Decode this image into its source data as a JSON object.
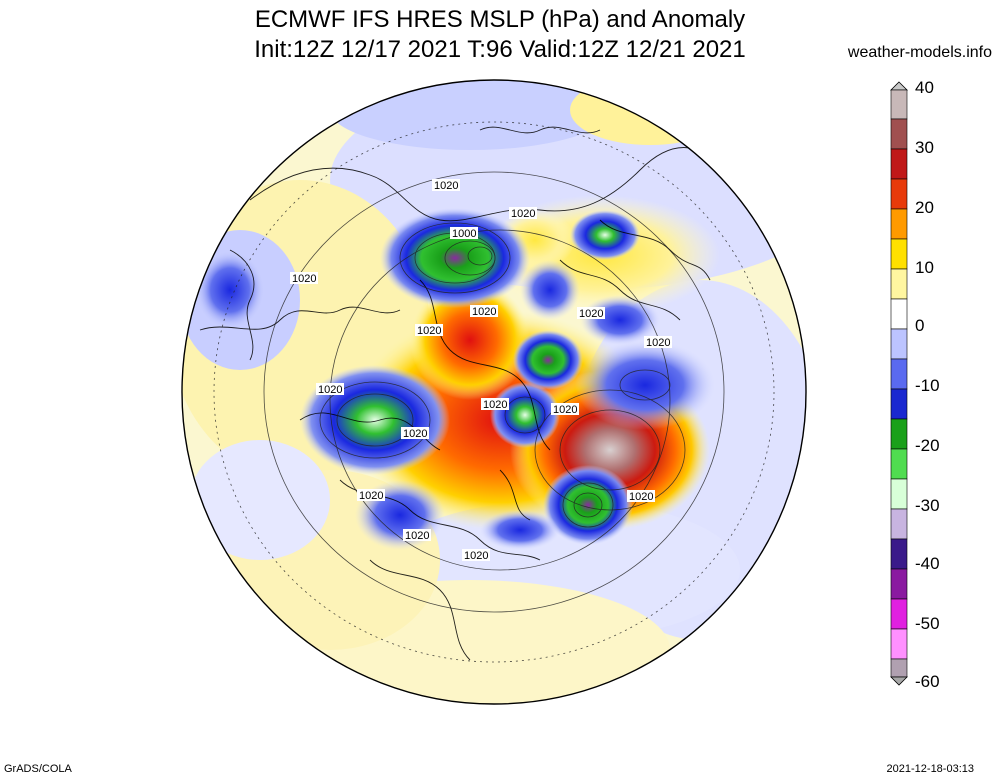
{
  "header": {
    "title_line1": "ECMWF IFS HRES MSLP (hPa) and Anomaly",
    "title_line2": "Init:12Z 12/17 2021 T:96 Valid:12Z 12/21 2021",
    "site": "weather-models.info"
  },
  "footer": {
    "left": "GrADS/COLA",
    "right": "2021-12-18-03:13"
  },
  "colorbar": {
    "labels": [
      "40",
      "30",
      "20",
      "10",
      "0",
      "-10",
      "-20",
      "-30",
      "-40",
      "-50",
      "-60"
    ],
    "colors": [
      "#b0a0a0",
      "#b04040",
      "#cc1010",
      "#ff6a00",
      "#ffc800",
      "#fff8a0",
      "#ffffff",
      "#aab4ff",
      "#1a28e0",
      "#1ab41a",
      "#c8ffc8",
      "#5a1a8c",
      "#d21ed2",
      "#ff8cff",
      "#b4b4b4"
    ]
  },
  "contour_labels": [
    "1020",
    "1000",
    "1020",
    "1020",
    "1020",
    "1020",
    "1020",
    "1020",
    "1020",
    "1020",
    "1020",
    "1020",
    "1020",
    "1020",
    "1020",
    "1020"
  ]
}
